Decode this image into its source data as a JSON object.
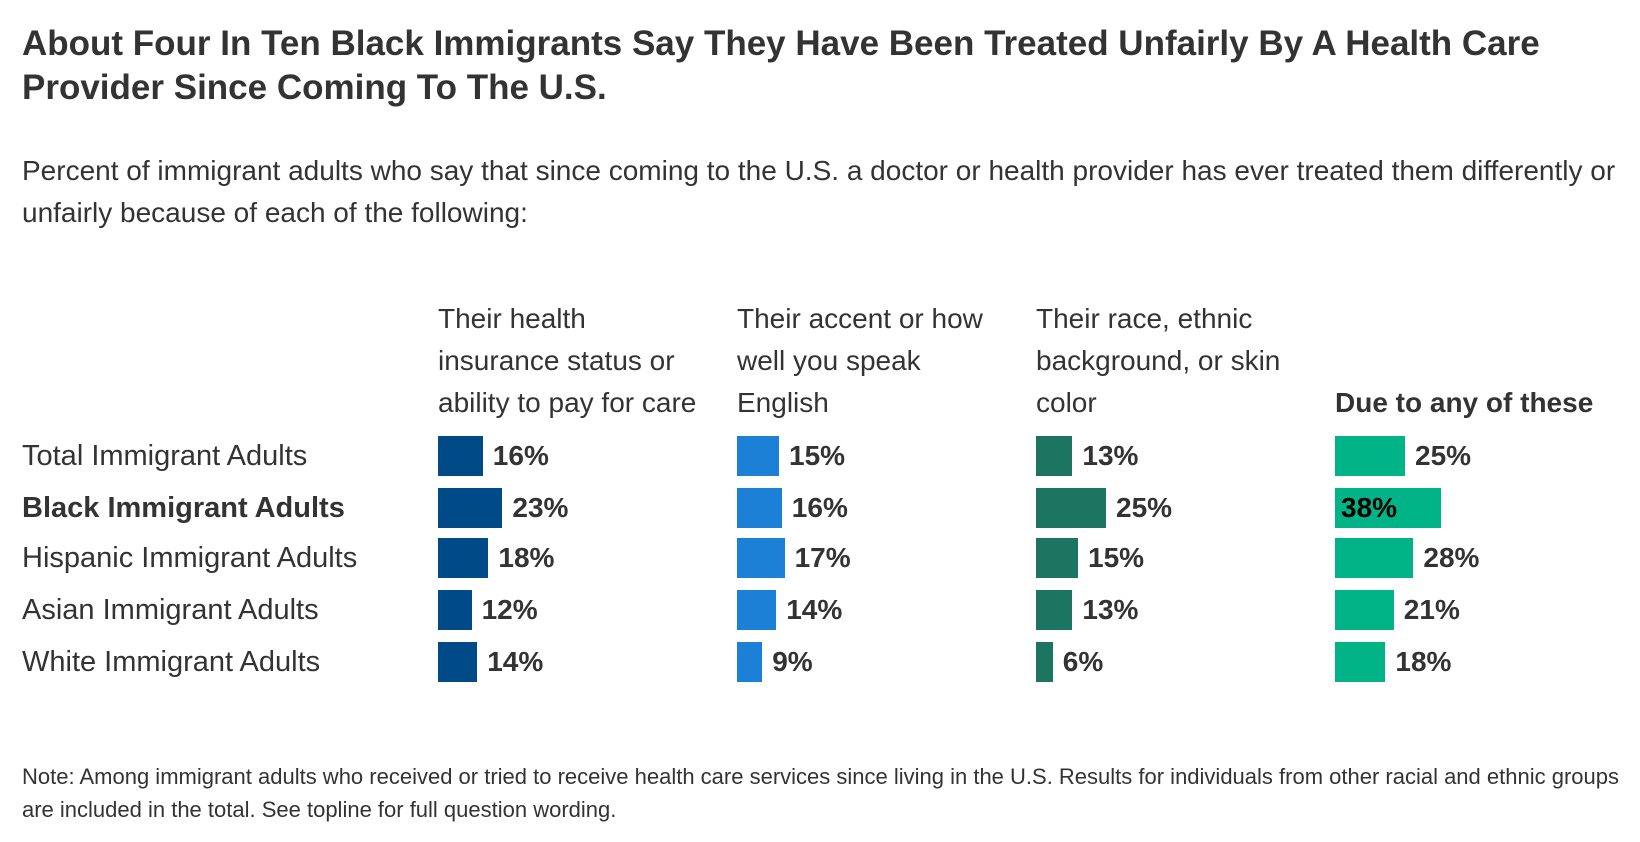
{
  "chart_data": {
    "type": "bar",
    "title": "About Four In Ten Black Immigrants Say They Have Been Treated Unfairly By A Health Care Provider Since Coming To The U.S.",
    "subtitle": "Percent of immigrant adults who say that since coming to the U.S. a doctor or health provider has ever treated them differently or unfairly because of each of the following:",
    "categories": [
      "Total Immigrant Adults",
      "Black Immigrant Adults",
      "Hispanic Immigrant Adults",
      "Asian Immigrant Adults",
      "White Immigrant Adults"
    ],
    "highlighted_category": "Black Immigrant Adults",
    "series": [
      {
        "name": "Their health insurance status or ability to pay for care",
        "values": [
          16,
          23,
          18,
          12,
          14
        ],
        "color": "#004a87"
      },
      {
        "name": "Their accent or how well you speak English",
        "values": [
          15,
          16,
          17,
          14,
          9
        ],
        "color": "#1c80d6"
      },
      {
        "name": "Their race, ethnic background, or skin color",
        "values": [
          13,
          25,
          15,
          13,
          6
        ],
        "color": "#1b7561"
      },
      {
        "name": "Due to any of these",
        "values": [
          25,
          38,
          28,
          21,
          18
        ],
        "color": "#00b487",
        "bold": true
      }
    ],
    "value_suffix": "%",
    "note": "Note: Among immigrant adults who received or tried to receive health care services since living in the U.S. Results for individuals from other racial and ethnic groups are included in the total. See topline for full question wording."
  }
}
